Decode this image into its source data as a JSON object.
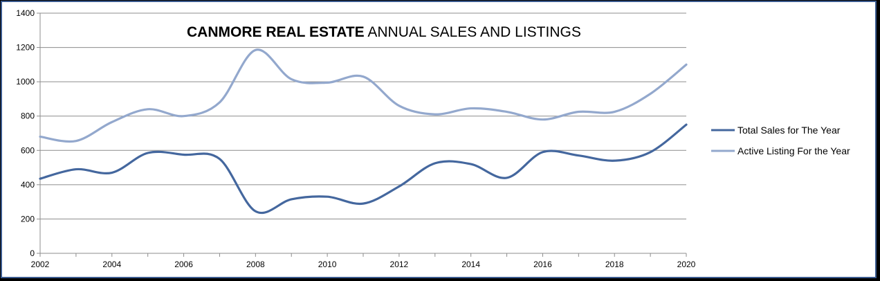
{
  "chart_data": {
    "type": "line",
    "title_bold": "CANMORE REAL ESTATE",
    "title_rest": " ANNUAL SALES AND LISTINGS",
    "x": [
      2002,
      2003,
      2004,
      2005,
      2006,
      2007,
      2008,
      2009,
      2010,
      2011,
      2012,
      2013,
      2014,
      2015,
      2016,
      2017,
      2018,
      2019,
      2020
    ],
    "xticks": [
      "2002",
      "2004",
      "2006",
      "2008",
      "2010",
      "2012",
      "2014",
      "2016",
      "2018",
      "2020"
    ],
    "yticks": [
      "0",
      "200",
      "400",
      "600",
      "800",
      "1000",
      "1200",
      "1400"
    ],
    "ylim": [
      0,
      1400
    ],
    "xlim": [
      2002,
      2020
    ],
    "grid": true,
    "legend_position": "right",
    "series": [
      {
        "name": "Total Sales for The Year",
        "color": "#44679e",
        "values": [
          435,
          490,
          470,
          585,
          575,
          550,
          245,
          315,
          330,
          290,
          390,
          525,
          520,
          440,
          590,
          570,
          540,
          590,
          750
        ]
      },
      {
        "name": "Active Listing For the Year",
        "color": "#93a8cd",
        "values": [
          680,
          655,
          765,
          840,
          800,
          880,
          1185,
          1015,
          995,
          1030,
          860,
          810,
          845,
          825,
          780,
          825,
          825,
          930,
          1100
        ]
      }
    ]
  }
}
